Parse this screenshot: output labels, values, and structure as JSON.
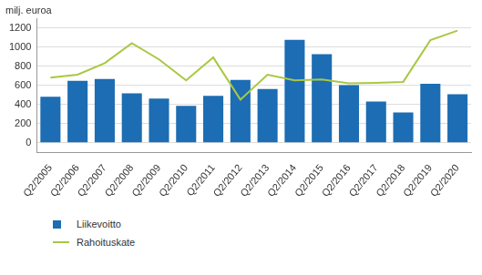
{
  "chart_data": {
    "type": "bar",
    "ylabel": "milj. euroa",
    "categories": [
      "Q2/2005",
      "Q2/2006",
      "Q2/2007",
      "Q2/2008",
      "Q2/2009",
      "Q2/2010",
      "Q2/2011",
      "Q2/2012",
      "Q2/2013",
      "Q2/2014",
      "Q2/2015",
      "Q2/2016",
      "Q2/2017",
      "Q2/2018",
      "Q2/2019",
      "Q2/2020"
    ],
    "series": [
      {
        "name": "Liikevoitto",
        "type": "bar",
        "color": "#1c6db3",
        "values": [
          480,
          645,
          665,
          515,
          460,
          385,
          490,
          655,
          560,
          1075,
          925,
          600,
          430,
          315,
          615,
          505
        ]
      },
      {
        "name": "Rahoituskate",
        "type": "line",
        "color": "#a9c843",
        "values": [
          680,
          710,
          830,
          1040,
          870,
          650,
          890,
          450,
          710,
          650,
          660,
          620,
          625,
          635,
          1070,
          1170
        ]
      }
    ],
    "ylim": [
      -100,
      1300
    ],
    "yticks": [
      0,
      200,
      400,
      600,
      800,
      1000,
      1200
    ],
    "grid": true,
    "legend": "bottom left"
  }
}
